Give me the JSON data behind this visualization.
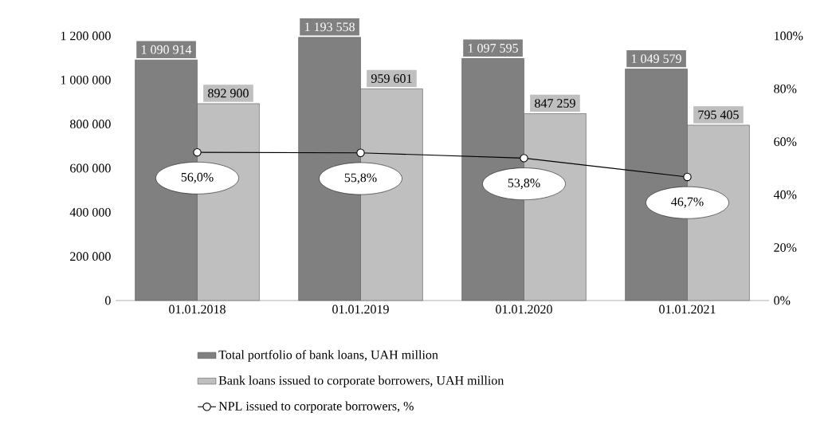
{
  "chart_data": {
    "type": "bar",
    "categories": [
      "01.01.2018",
      "01.01.2019",
      "01.01.2020",
      "01.01.2021"
    ],
    "series": [
      {
        "name": "Total portfolio of bank loans, UAH million",
        "color": "#808080",
        "values": [
          1090914,
          1193558,
          1097595,
          1049579
        ],
        "value_labels": [
          "1 090 914",
          "1 193 558",
          "1 097 595",
          "1 049 579"
        ]
      },
      {
        "name": "Bank loans issued to corporate borrowers, UAH million",
        "color": "#bfbfbf",
        "values": [
          892900,
          959601,
          847259,
          795405
        ],
        "value_labels": [
          "892 900",
          "959 601",
          "847 259",
          "795 405"
        ]
      },
      {
        "name": "NPL issued to corporate borrowers, %",
        "type": "line",
        "axis": "y2",
        "color": "#000000",
        "marker": "circle",
        "values": [
          56.0,
          55.8,
          53.8,
          46.7
        ],
        "value_labels": [
          "56,0%",
          "55,8%",
          "53,8%",
          "46,7%"
        ]
      }
    ],
    "ylim": [
      0,
      1200000
    ],
    "yticks": [
      0,
      {
        "value": 200000,
        "label": "200 000"
      },
      {
        "value": 400000,
        "label": "400 000"
      },
      {
        "value": 600000,
        "label": "600 000"
      },
      {
        "value": 800000,
        "label": "800 000"
      },
      {
        "value": 1000000,
        "label": "1 000 000"
      },
      {
        "value": 1200000,
        "label": "1 200 000"
      }
    ],
    "y2lim": [
      0,
      100
    ],
    "y2ticks": [
      {
        "value": 0,
        "label": "0%"
      },
      {
        "value": 20,
        "label": "20%"
      },
      {
        "value": 40,
        "label": "40%"
      },
      {
        "value": 60,
        "label": "60%"
      },
      {
        "value": 80,
        "label": "80%"
      },
      {
        "value": 100,
        "label": "100%"
      }
    ],
    "legend": "bottom"
  }
}
